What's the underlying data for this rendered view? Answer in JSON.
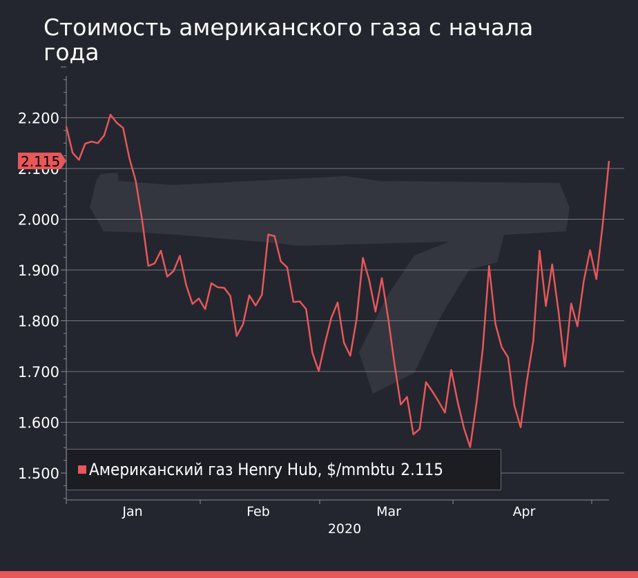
{
  "title": "Стоимость американского газа с начала года",
  "colors": {
    "background": "#23262e",
    "line": "#e8575a",
    "grid": "#8a8d94",
    "text": "#ffffff",
    "watermark": "#33363e"
  },
  "legend": {
    "label": "Американский газ Henry Hub, $/mmbtu",
    "value": "2.115"
  },
  "last_value_tag": "2.115",
  "chart_data": {
    "type": "line",
    "title": "Стоимость американского газа с начала года",
    "xlabel": "2020",
    "ylabel": "",
    "ylim": [
      1.45,
      2.3
    ],
    "y_ticks": [
      1.5,
      1.6,
      1.7,
      1.8,
      1.9,
      2.0,
      2.1,
      2.2
    ],
    "y_tick_labels": [
      "1.500",
      "1.600",
      "1.700",
      "1.800",
      "1.900",
      "2.000",
      "2.100",
      "2.200"
    ],
    "x_tick_labels": [
      "Jan",
      "Feb",
      "Mar",
      "Apr"
    ],
    "x_year_label": "2020",
    "grid": true,
    "legend_position": "bottom-left",
    "series": [
      {
        "name": "Американский газ Henry Hub, $/mmbtu",
        "values": [
          2.183,
          2.131,
          2.117,
          2.149,
          2.153,
          2.15,
          2.165,
          2.206,
          2.19,
          2.18,
          2.12,
          2.076,
          2.0,
          1.908,
          1.913,
          1.938,
          1.887,
          1.898,
          1.928,
          1.87,
          1.833,
          1.844,
          1.823,
          1.874,
          1.866,
          1.865,
          1.849,
          1.77,
          1.793,
          1.85,
          1.83,
          1.851,
          1.97,
          1.967,
          1.917,
          1.905,
          1.837,
          1.838,
          1.823,
          1.737,
          1.701,
          1.756,
          1.806,
          1.836,
          1.757,
          1.731,
          1.803,
          1.924,
          1.88,
          1.818,
          1.884,
          1.806,
          1.715,
          1.635,
          1.65,
          1.576,
          1.587,
          1.679,
          1.661,
          1.641,
          1.619,
          1.703,
          1.641,
          1.589,
          1.551,
          1.638,
          1.745,
          1.908,
          1.794,
          1.748,
          1.728,
          1.633,
          1.59,
          1.683,
          1.76,
          1.938,
          1.829,
          1.911,
          1.818,
          1.71,
          1.834,
          1.789,
          1.878,
          1.939,
          1.882,
          1.99,
          2.115
        ]
      }
    ]
  }
}
